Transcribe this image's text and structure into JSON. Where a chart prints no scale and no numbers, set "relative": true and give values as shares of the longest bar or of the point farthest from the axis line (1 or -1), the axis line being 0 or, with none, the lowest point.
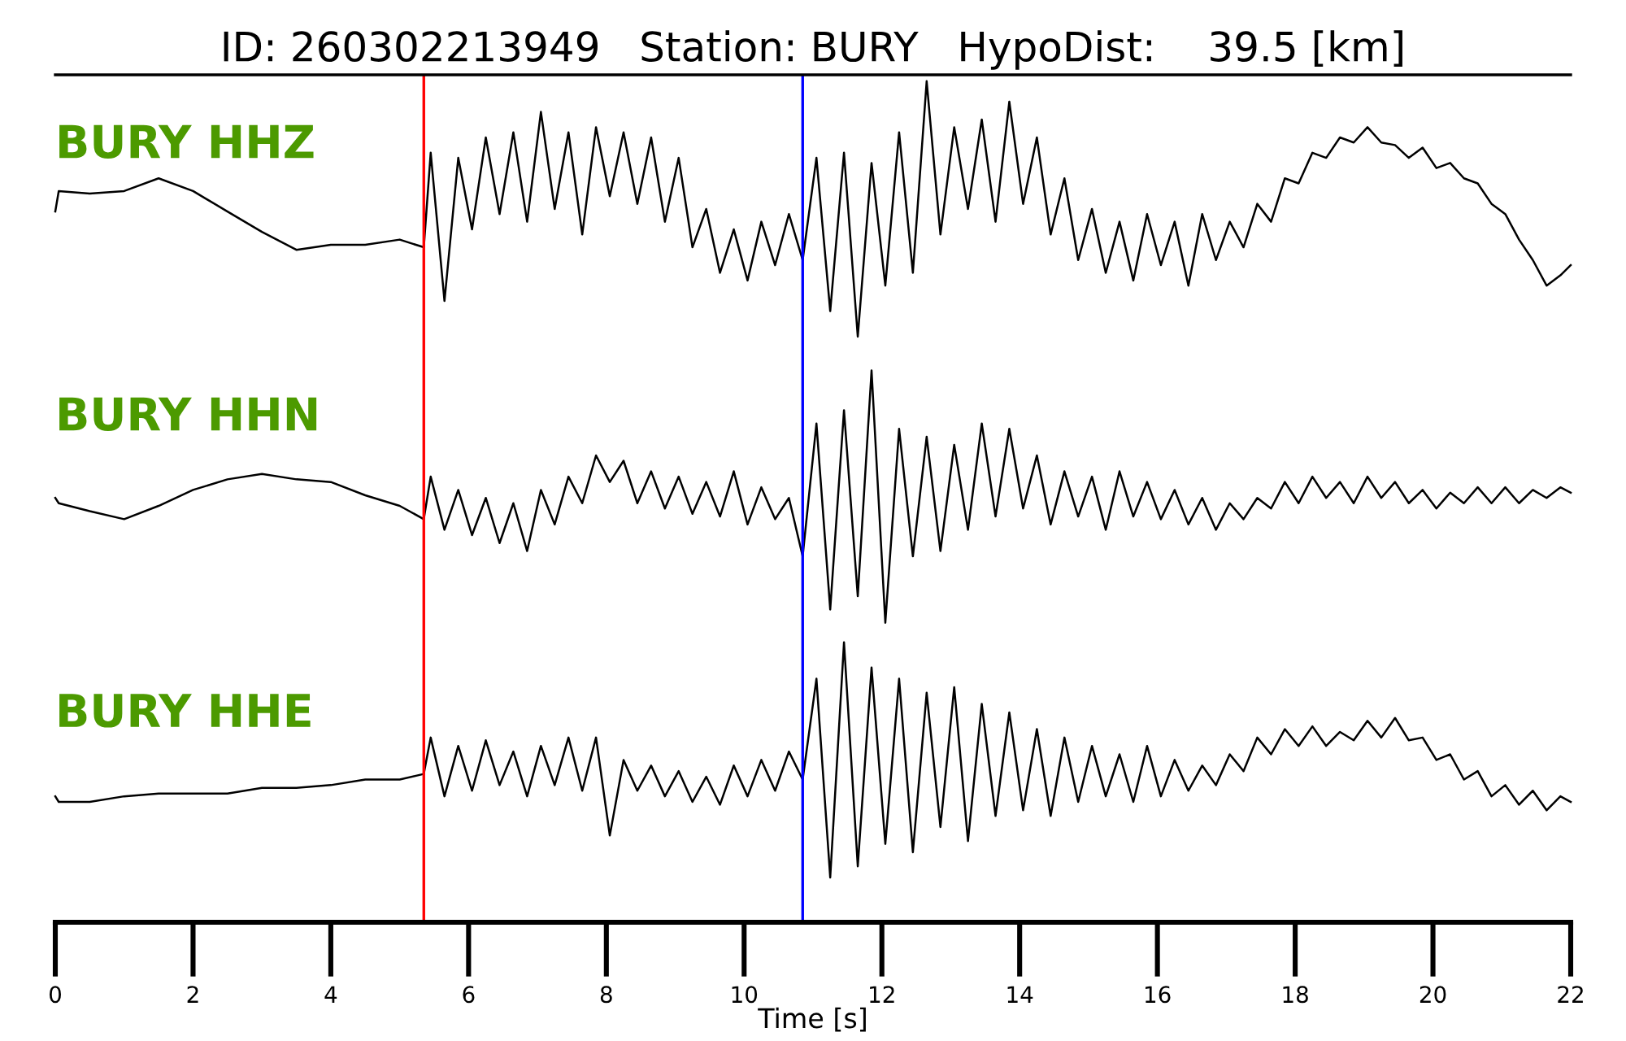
{
  "chart_data": [
    {
      "type": "line",
      "title": "ID: 260302213949   Station: BURY   HypoDist:    39.5 [km]",
      "relative": true,
      "tick_labels": false,
      "xlim": [
        0,
        22
      ],
      "grid": false,
      "legend": false,
      "annotations": [
        "BURY HHZ"
      ],
      "ref_lines": [
        {
          "axis": "x",
          "value": 5.35,
          "color": "#ff0000"
        },
        {
          "axis": "x",
          "value": 10.85,
          "color": "#0000ff"
        }
      ],
      "x": [
        0,
        0.05,
        0.5,
        1,
        1.5,
        2,
        2.5,
        3,
        3.5,
        4,
        4.5,
        5,
        5.35,
        5.45,
        5.65,
        5.85,
        6.05,
        6.25,
        6.45,
        6.65,
        6.85,
        7.05,
        7.25,
        7.45,
        7.65,
        7.85,
        8.05,
        8.25,
        8.45,
        8.65,
        8.85,
        9.05,
        9.25,
        9.45,
        9.65,
        9.85,
        10.05,
        10.25,
        10.45,
        10.65,
        10.85,
        11.05,
        11.25,
        11.45,
        11.65,
        11.85,
        12.05,
        12.25,
        12.45,
        12.65,
        12.85,
        13.05,
        13.25,
        13.45,
        13.65,
        13.85,
        14.05,
        14.25,
        14.45,
        14.65,
        14.85,
        15.05,
        15.25,
        15.45,
        15.65,
        15.85,
        16.05,
        16.25,
        16.45,
        16.65,
        16.85,
        17.05,
        17.25,
        17.45,
        17.65,
        17.85,
        18.05,
        18.25,
        18.45,
        18.65,
        18.85,
        19.05,
        19.25,
        19.45,
        19.65,
        19.85,
        20.05,
        20.25,
        20.45,
        20.65,
        20.85,
        21.05,
        21.25,
        21.45,
        21.65,
        21.85,
        22
      ],
      "series": [
        {
          "color": "#000000",
          "values": [
            0.49,
            0.57,
            0.56,
            0.57,
            0.62,
            0.57,
            0.49,
            0.41,
            0.34,
            0.36,
            0.36,
            0.38,
            0.35,
            0.72,
            0.14,
            0.7,
            0.42,
            0.78,
            0.48,
            0.8,
            0.45,
            0.88,
            0.5,
            0.8,
            0.4,
            0.82,
            0.55,
            0.8,
            0.52,
            0.78,
            0.45,
            0.7,
            0.35,
            0.5,
            0.25,
            0.42,
            0.22,
            0.45,
            0.28,
            0.48,
            0.3,
            0.7,
            0.1,
            0.72,
            0.0,
            0.68,
            0.2,
            0.8,
            0.25,
            1.0,
            0.4,
            0.82,
            0.5,
            0.85,
            0.45,
            0.92,
            0.52,
            0.78,
            0.4,
            0.62,
            0.3,
            0.5,
            0.25,
            0.45,
            0.22,
            0.48,
            0.28,
            0.45,
            0.2,
            0.48,
            0.3,
            0.45,
            0.35,
            0.52,
            0.45,
            0.62,
            0.6,
            0.72,
            0.7,
            0.78,
            0.76,
            0.82,
            0.76,
            0.75,
            0.7,
            0.74,
            0.66,
            0.68,
            0.62,
            0.6,
            0.52,
            0.48,
            0.38,
            0.3,
            0.2,
            0.24,
            0.28
          ]
        }
      ]
    },
    {
      "type": "line",
      "relative": true,
      "tick_labels": false,
      "xlim": [
        0,
        22
      ],
      "grid": false,
      "legend": false,
      "annotations": [
        "BURY HHN"
      ],
      "ref_lines": [
        {
          "axis": "x",
          "value": 5.35,
          "color": "#ff0000"
        },
        {
          "axis": "x",
          "value": 10.85,
          "color": "#0000ff"
        }
      ],
      "x": [
        0,
        0.05,
        0.5,
        1,
        1.5,
        2,
        2.5,
        3,
        3.5,
        4,
        4.5,
        5,
        5.35,
        5.45,
        5.65,
        5.85,
        6.05,
        6.25,
        6.45,
        6.65,
        6.85,
        7.05,
        7.25,
        7.45,
        7.65,
        7.85,
        8.05,
        8.25,
        8.45,
        8.65,
        8.85,
        9.05,
        9.25,
        9.45,
        9.65,
        9.85,
        10.05,
        10.25,
        10.45,
        10.65,
        10.85,
        11.05,
        11.25,
        11.45,
        11.65,
        11.85,
        12.05,
        12.25,
        12.45,
        12.65,
        12.85,
        13.05,
        13.25,
        13.45,
        13.65,
        13.85,
        14.05,
        14.25,
        14.45,
        14.65,
        14.85,
        15.05,
        15.25,
        15.45,
        15.65,
        15.85,
        16.05,
        16.25,
        16.45,
        16.65,
        16.85,
        17.05,
        17.25,
        17.45,
        17.65,
        17.85,
        18.05,
        18.25,
        18.45,
        18.65,
        18.85,
        19.05,
        19.25,
        19.45,
        19.65,
        19.85,
        20.05,
        20.25,
        20.45,
        20.65,
        20.85,
        21.05,
        21.25,
        21.45,
        21.65,
        21.85,
        22
      ],
      "series": [
        {
          "color": "#000000",
          "values": [
            0.52,
            0.5,
            0.47,
            0.44,
            0.49,
            0.55,
            0.59,
            0.61,
            0.59,
            0.58,
            0.53,
            0.49,
            0.44,
            0.6,
            0.4,
            0.55,
            0.38,
            0.52,
            0.35,
            0.5,
            0.32,
            0.55,
            0.42,
            0.6,
            0.5,
            0.68,
            0.58,
            0.66,
            0.5,
            0.62,
            0.48,
            0.6,
            0.46,
            0.58,
            0.45,
            0.62,
            0.42,
            0.56,
            0.44,
            0.52,
            0.3,
            0.8,
            0.1,
            0.85,
            0.15,
            1.0,
            0.05,
            0.78,
            0.3,
            0.75,
            0.32,
            0.72,
            0.4,
            0.8,
            0.45,
            0.78,
            0.48,
            0.68,
            0.42,
            0.62,
            0.45,
            0.6,
            0.4,
            0.62,
            0.45,
            0.58,
            0.44,
            0.55,
            0.42,
            0.52,
            0.4,
            0.5,
            0.44,
            0.52,
            0.48,
            0.58,
            0.5,
            0.6,
            0.52,
            0.58,
            0.5,
            0.6,
            0.52,
            0.58,
            0.5,
            0.55,
            0.48,
            0.54,
            0.5,
            0.56,
            0.5,
            0.56,
            0.5,
            0.55,
            0.52,
            0.56,
            0.54
          ]
        }
      ]
    },
    {
      "type": "line",
      "relative": true,
      "xlim": [
        0,
        22
      ],
      "grid": false,
      "legend": false,
      "xlabel": "Time [s]",
      "annotations": [
        "BURY HHE"
      ],
      "ref_lines": [
        {
          "axis": "x",
          "value": 5.35,
          "color": "#ff0000"
        },
        {
          "axis": "x",
          "value": 10.85,
          "color": "#0000ff"
        }
      ],
      "xticks": [
        0,
        2,
        4,
        6,
        8,
        10,
        12,
        14,
        16,
        18,
        20,
        22
      ],
      "x": [
        0,
        0.05,
        0.5,
        1,
        1.5,
        2,
        2.5,
        3,
        3.5,
        4,
        4.5,
        5,
        5.35,
        5.45,
        5.65,
        5.85,
        6.05,
        6.25,
        6.45,
        6.65,
        6.85,
        7.05,
        7.25,
        7.45,
        7.65,
        7.85,
        8.05,
        8.25,
        8.45,
        8.65,
        8.85,
        9.05,
        9.25,
        9.45,
        9.65,
        9.85,
        10.05,
        10.25,
        10.45,
        10.65,
        10.85,
        11.05,
        11.25,
        11.45,
        11.65,
        11.85,
        12.05,
        12.25,
        12.45,
        12.65,
        12.85,
        13.05,
        13.25,
        13.45,
        13.65,
        13.85,
        14.05,
        14.25,
        14.45,
        14.65,
        14.85,
        15.05,
        15.25,
        15.45,
        15.65,
        15.85,
        16.05,
        16.25,
        16.45,
        16.65,
        16.85,
        17.05,
        17.25,
        17.45,
        17.65,
        17.85,
        18.05,
        18.25,
        18.45,
        18.65,
        18.85,
        19.05,
        19.25,
        19.45,
        19.65,
        19.85,
        20.05,
        20.25,
        20.45,
        20.65,
        20.85,
        21.05,
        21.25,
        21.45,
        21.65,
        21.85,
        22
      ],
      "series": [
        {
          "color": "#000000",
          "values": [
            0.45,
            0.43,
            0.43,
            0.45,
            0.46,
            0.46,
            0.46,
            0.48,
            0.48,
            0.49,
            0.51,
            0.51,
            0.53,
            0.66,
            0.45,
            0.63,
            0.47,
            0.65,
            0.49,
            0.61,
            0.45,
            0.63,
            0.49,
            0.66,
            0.47,
            0.66,
            0.31,
            0.58,
            0.47,
            0.56,
            0.45,
            0.54,
            0.43,
            0.52,
            0.42,
            0.56,
            0.45,
            0.58,
            0.47,
            0.61,
            0.51,
            0.87,
            0.16,
            1.0,
            0.2,
            0.91,
            0.28,
            0.87,
            0.25,
            0.82,
            0.34,
            0.84,
            0.29,
            0.78,
            0.38,
            0.75,
            0.4,
            0.69,
            0.38,
            0.66,
            0.43,
            0.63,
            0.45,
            0.6,
            0.43,
            0.63,
            0.45,
            0.58,
            0.47,
            0.56,
            0.49,
            0.6,
            0.54,
            0.66,
            0.6,
            0.69,
            0.63,
            0.7,
            0.63,
            0.68,
            0.65,
            0.72,
            0.66,
            0.73,
            0.65,
            0.66,
            0.58,
            0.6,
            0.51,
            0.54,
            0.45,
            0.49,
            0.42,
            0.47,
            0.4,
            0.45,
            0.43
          ]
        }
      ]
    }
  ]
}
